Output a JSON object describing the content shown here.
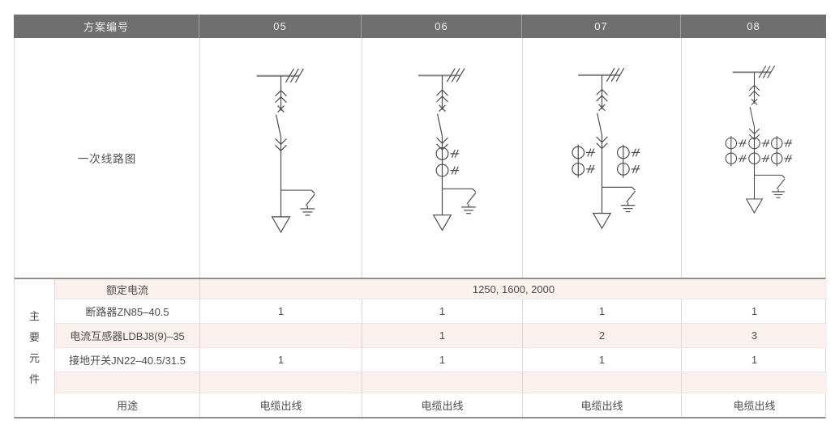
{
  "header": {
    "label": "方案编号",
    "schemes": [
      "05",
      "06",
      "07",
      "08"
    ],
    "bg_color": "#6f6f6f",
    "text_color": "#f1f1f1"
  },
  "diagram_section": {
    "row_label": "一次线路图",
    "diagrams": [
      {
        "scheme": "05",
        "ct_count": 0,
        "ct_stack_x": []
      },
      {
        "scheme": "06",
        "ct_count": 1,
        "ct_stack_x": [
          100
        ]
      },
      {
        "scheme": "07",
        "ct_count": 2,
        "ct_stack_x": [
          70,
          127
        ]
      },
      {
        "scheme": "08",
        "ct_count": 3,
        "ct_stack_x": [
          68,
          100,
          131
        ]
      }
    ],
    "line_color": "#4a4a4a",
    "busbar_color": "#8a8a8a"
  },
  "components": {
    "group_label": "主要元件",
    "group_label_chars": [
      "主",
      "要",
      "元",
      "件"
    ],
    "shade_color": "#faf0ed",
    "rows": [
      {
        "label": "额定电流",
        "merged_value": "1250, 1600, 2000"
      },
      {
        "label": "断路器ZN85–40.5",
        "values": [
          "1",
          "1",
          "1",
          "1"
        ]
      },
      {
        "label": "电流互感器LDBJ8(9)–35",
        "values": [
          "",
          "1",
          "2",
          "3"
        ]
      },
      {
        "label": "接地开关JN22–40.5/31.5",
        "values": [
          "1",
          "1",
          "1",
          "1"
        ]
      },
      {
        "label": "",
        "values": [
          "",
          "",
          "",
          ""
        ]
      },
      {
        "label": "用途",
        "values": [
          "电缆出线",
          "电缆出线",
          "电缆出线",
          "电缆出线"
        ]
      }
    ]
  }
}
